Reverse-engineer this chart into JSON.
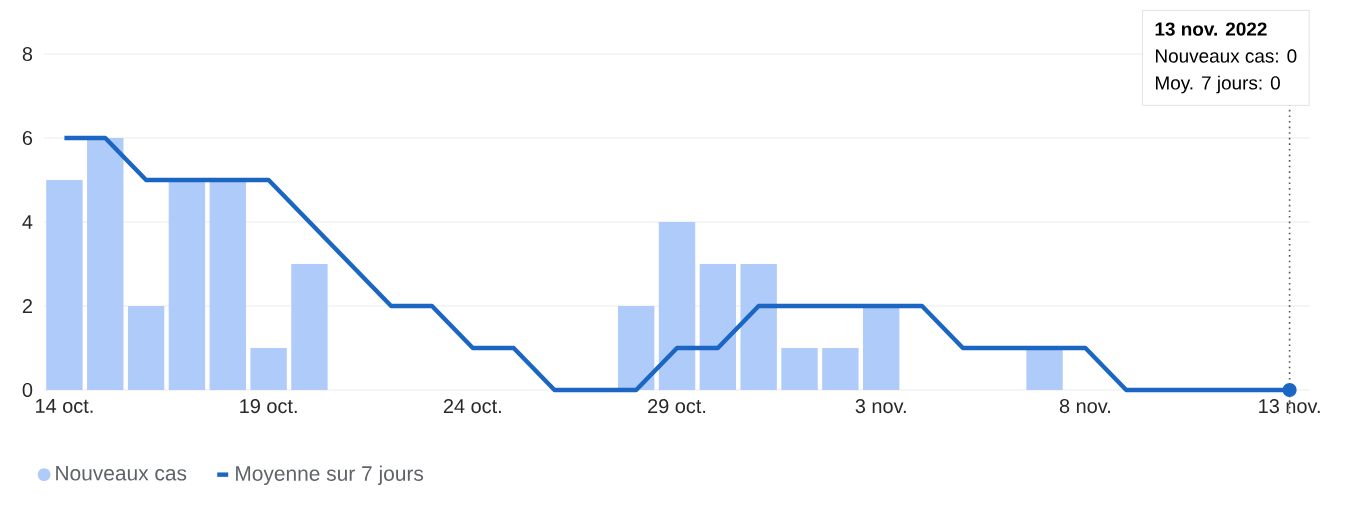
{
  "chart_data": {
    "type": "bar",
    "x": [
      "2022-10-14",
      "2022-10-15",
      "2022-10-16",
      "2022-10-17",
      "2022-10-18",
      "2022-10-19",
      "2022-10-20",
      "2022-10-21",
      "2022-10-22",
      "2022-10-23",
      "2022-10-24",
      "2022-10-25",
      "2022-10-26",
      "2022-10-27",
      "2022-10-28",
      "2022-10-29",
      "2022-10-30",
      "2022-10-31",
      "2022-11-01",
      "2022-11-02",
      "2022-11-03",
      "2022-11-04",
      "2022-11-05",
      "2022-11-06",
      "2022-11-07",
      "2022-11-08",
      "2022-11-09",
      "2022-11-10",
      "2022-11-11",
      "2022-11-12",
      "2022-11-13"
    ],
    "series": [
      {
        "name": "Nouveaux cas",
        "color": "#aecbfa",
        "values": [
          5,
          6,
          2,
          5,
          5,
          1,
          3,
          0,
          0,
          0,
          0,
          0,
          0,
          0,
          2,
          4,
          3,
          3,
          1,
          1,
          2,
          0,
          0,
          0,
          1,
          0,
          0,
          0,
          0,
          0,
          0
        ]
      },
      {
        "name": "Moyenne sur 7 jours",
        "type": "line",
        "color": "#1a66c2",
        "values": [
          6,
          6,
          5,
          5,
          5,
          5,
          4,
          3,
          2,
          2,
          1,
          1,
          0,
          0,
          0,
          1,
          1,
          2,
          2,
          2,
          2,
          2,
          1,
          1,
          1,
          1,
          0,
          0,
          0,
          0,
          0
        ]
      }
    ],
    "xlim": [
      "2022-10-13T12:00",
      "2022-11-13T12:00"
    ],
    "xticks": [
      {
        "value": "2022-10-14",
        "label": "14 oct."
      },
      {
        "value": "2022-10-19",
        "label": "19 oct."
      },
      {
        "value": "2022-10-24",
        "label": "24 oct."
      },
      {
        "value": "2022-10-29",
        "label": "29 oct."
      },
      {
        "value": "2022-11-03",
        "label": "3 nov."
      },
      {
        "value": "2022-11-08",
        "label": "8 nov."
      },
      {
        "value": "2022-11-13",
        "label": "13 nov."
      }
    ],
    "ylim": [
      0,
      8
    ],
    "yticks": [
      0,
      2,
      4,
      6,
      8
    ],
    "grid": "y",
    "legend": "bottom left",
    "ref_lines": [
      {
        "axis": "x",
        "value": "2022-11-13",
        "line_style": "dotted",
        "color": "#555555"
      }
    ],
    "annotations": [
      "13 nov. 2022",
      "Nouveaux cas: 0",
      "Moy. 7 jours: 0"
    ]
  }
}
